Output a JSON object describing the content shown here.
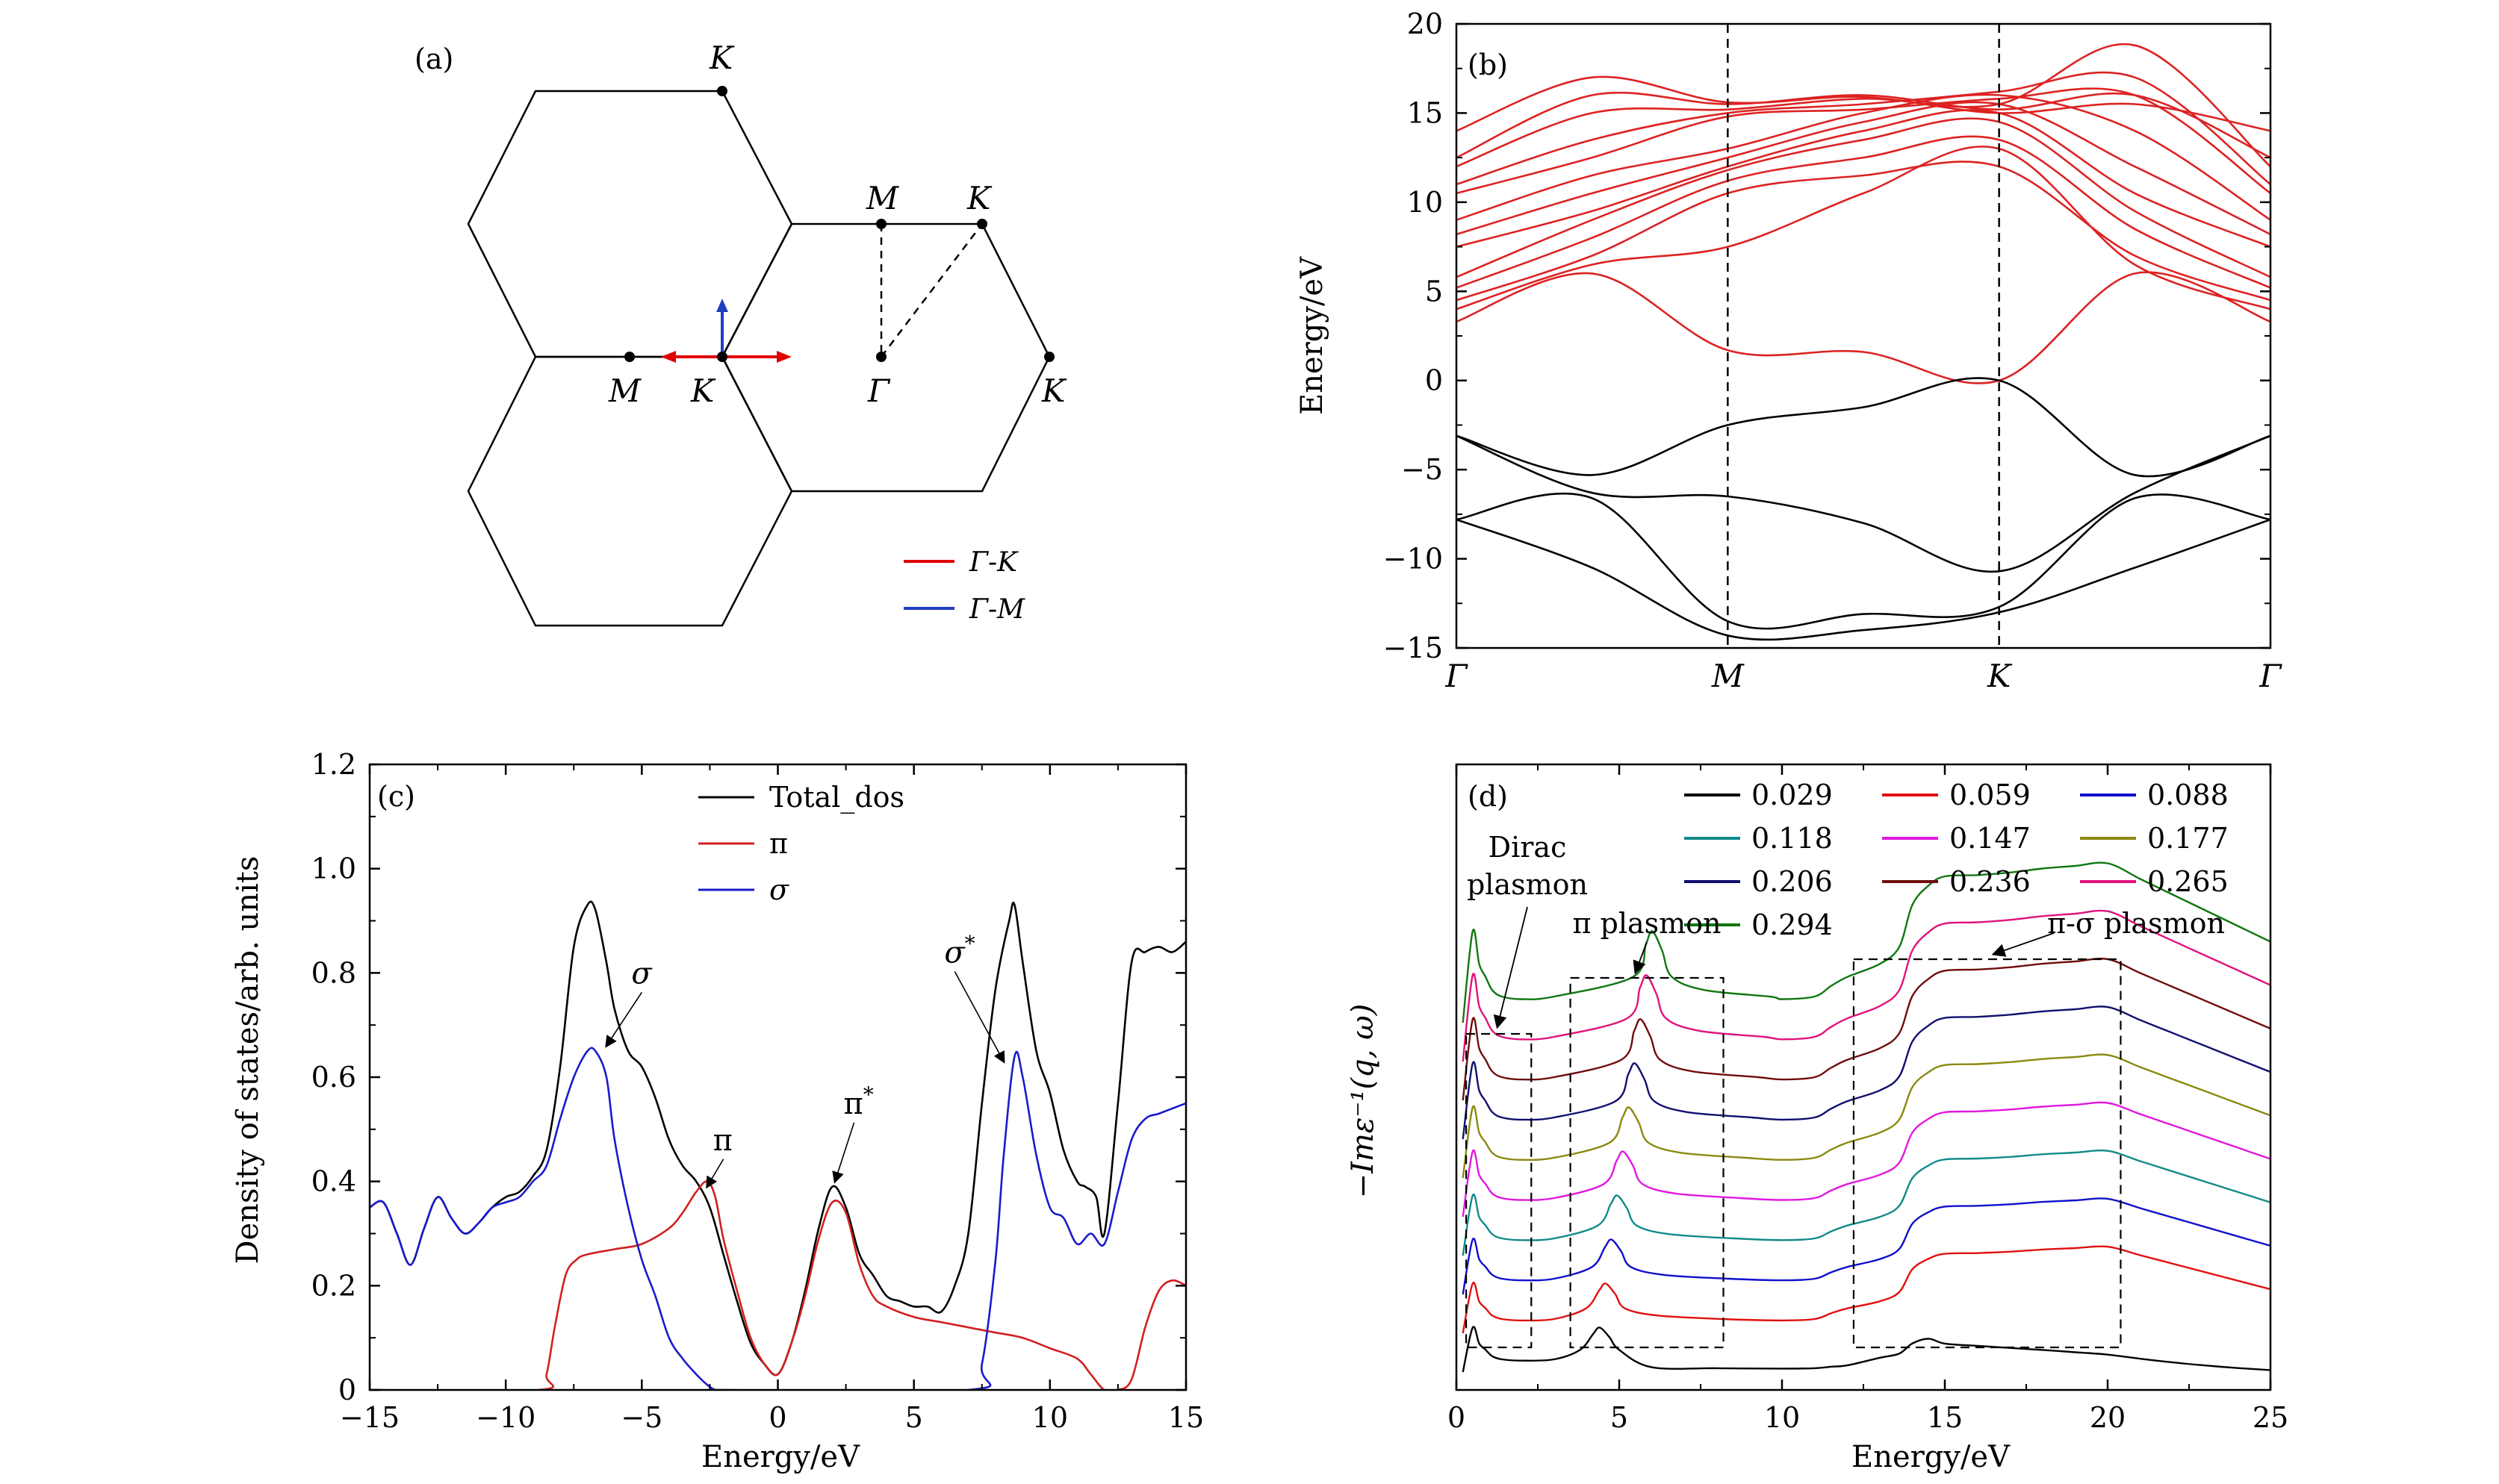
{
  "figure": {
    "title": ""
  },
  "panels": {
    "a": {
      "label": "(a)",
      "points": {
        "K": "K",
        "M": "M",
        "G": "Γ"
      },
      "legend": [
        {
          "label": "Γ-K",
          "color": "#e00000"
        },
        {
          "label": "Γ-M",
          "color": "#1f3fbf"
        }
      ]
    }
  },
  "chart_data": [
    {
      "id": "b",
      "type": "line",
      "label": "(b)",
      "title": "",
      "xlabel": "",
      "ylabel": "Energy/eV",
      "ylim": [
        -15,
        20
      ],
      "yticks": [
        -15,
        -10,
        -5,
        0,
        5,
        10,
        15,
        20
      ],
      "xticks": [
        "Γ",
        "M",
        "K",
        "Γ"
      ],
      "xtick_pos": [
        0,
        1,
        2,
        3
      ],
      "series": [
        {
          "group": "conduction",
          "color": "#dd2222",
          "x": [
            0,
            0.5,
            1,
            1.5,
            2,
            2.5,
            3
          ],
          "y": [
            3.3,
            6,
            1.7,
            1.6,
            0,
            6,
            3.3
          ]
        },
        {
          "group": "conduction",
          "color": "#dd2222",
          "x": [
            0,
            0.5,
            1,
            1.5,
            2,
            2.5,
            3
          ],
          "y": [
            4.0,
            6.5,
            7.5,
            10.5,
            13.0,
            6.5,
            4.0
          ]
        },
        {
          "group": "conduction",
          "color": "#dd2222",
          "x": [
            0,
            0.5,
            1,
            1.5,
            2,
            2.5,
            3
          ],
          "y": [
            4.5,
            7.0,
            10.5,
            11.5,
            12.0,
            7.0,
            4.5
          ]
        },
        {
          "group": "conduction",
          "color": "#dd2222",
          "x": [
            0,
            0.5,
            1,
            1.5,
            2,
            2.5,
            3
          ],
          "y": [
            5.2,
            8.0,
            11.2,
            12.5,
            13.5,
            8.5,
            5.2
          ]
        },
        {
          "group": "conduction",
          "color": "#dd2222",
          "x": [
            0,
            0.5,
            1,
            1.5,
            2,
            2.5,
            3
          ],
          "y": [
            5.8,
            9.0,
            11.8,
            13.5,
            14.5,
            9.5,
            5.8
          ]
        },
        {
          "group": "conduction",
          "color": "#dd2222",
          "x": [
            0,
            0.5,
            1,
            1.5,
            2,
            2.5,
            3
          ],
          "y": [
            7.5,
            9.5,
            12.0,
            14.0,
            15.0,
            10.5,
            7.5
          ]
        },
        {
          "group": "conduction",
          "color": "#dd2222",
          "x": [
            0,
            0.5,
            1,
            1.5,
            2,
            2.5,
            3
          ],
          "y": [
            8.2,
            10.5,
            12.5,
            14.5,
            15.5,
            12.0,
            8.2
          ]
        },
        {
          "group": "conduction",
          "color": "#dd2222",
          "x": [
            0,
            0.5,
            1,
            1.5,
            2,
            2.5,
            3
          ],
          "y": [
            9.0,
            11.5,
            13.0,
            15.0,
            16.0,
            14.0,
            9.0
          ]
        },
        {
          "group": "conduction",
          "color": "#dd2222",
          "x": [
            0,
            0.5,
            1,
            1.5,
            2,
            2.5,
            3
          ],
          "y": [
            10.5,
            12.5,
            14.8,
            15.2,
            15.8,
            16.0,
            10.5
          ]
        },
        {
          "group": "conduction",
          "color": "#dd2222",
          "x": [
            0,
            0.5,
            1,
            1.5,
            2,
            2.5,
            3
          ],
          "y": [
            11.0,
            13.5,
            15.0,
            15.5,
            16.2,
            17.0,
            11.0
          ]
        },
        {
          "group": "conduction",
          "color": "#dd2222",
          "x": [
            0,
            0.5,
            1,
            1.5,
            2,
            2.5,
            3
          ],
          "y": [
            12.0,
            15.0,
            15.2,
            15.8,
            15.5,
            18.8,
            12.0
          ]
        },
        {
          "group": "conduction",
          "color": "#dd2222",
          "x": [
            0,
            0.5,
            1,
            1.5,
            2,
            2.5,
            3
          ],
          "y": [
            12.5,
            16.0,
            15.5,
            16.0,
            15.2,
            16.0,
            12.5
          ]
        },
        {
          "group": "conduction",
          "color": "#dd2222",
          "x": [
            0,
            0.5,
            1,
            1.5,
            2,
            2.5,
            3
          ],
          "y": [
            14.0,
            17.0,
            15.6,
            15.9,
            15.0,
            15.5,
            14.0
          ]
        },
        {
          "group": "valence",
          "color": "#000000",
          "x": [
            0,
            0.5,
            1,
            1.5,
            2,
            2.5,
            3
          ],
          "y": [
            -3.1,
            -5.3,
            -2.5,
            -1.5,
            0,
            -5.3,
            -3.1
          ]
        },
        {
          "group": "valence",
          "color": "#000000",
          "x": [
            0,
            0.5,
            1,
            1.5,
            2,
            2.5,
            3
          ],
          "y": [
            -3.1,
            -6.3,
            -6.5,
            -8.0,
            -10.7,
            -6.3,
            -3.1
          ]
        },
        {
          "group": "valence",
          "color": "#000000",
          "x": [
            0,
            0.5,
            1,
            1.5,
            2,
            2.5,
            3
          ],
          "y": [
            -7.8,
            -6.6,
            -13.5,
            -13.1,
            -12.7,
            -6.6,
            -7.8
          ]
        },
        {
          "group": "valence",
          "color": "#000000",
          "x": [
            0,
            0.5,
            1,
            1.5,
            2,
            2.5,
            3
          ],
          "y": [
            -7.8,
            -10.5,
            -14.3,
            -14.0,
            -13.0,
            -10.5,
            -7.8
          ]
        }
      ],
      "vlines_at": [
        1,
        2
      ]
    },
    {
      "id": "c",
      "type": "line",
      "label": "(c)",
      "title": "",
      "xlabel": "Energy/eV",
      "ylabel": "Density of states/arb. units",
      "xlim": [
        -15,
        15
      ],
      "ylim": [
        0,
        1.2
      ],
      "xticks": [
        -15,
        -10,
        -5,
        0,
        5,
        10,
        15
      ],
      "xtick_labels": [
        "−15",
        "−10",
        "−5",
        "0",
        "5",
        "10",
        "15"
      ],
      "yticks": [
        0,
        0.2,
        0.4,
        0.6,
        0.8,
        1.0,
        1.2
      ],
      "ytick_labels": [
        "0",
        "0.2",
        "0.4",
        "0.6",
        "0.8",
        "1.0",
        "1.2"
      ],
      "legend": [
        {
          "label": "Total_dos",
          "color": "#000000"
        },
        {
          "label": "π",
          "color": "#d22020"
        },
        {
          "label": "σ",
          "color": "#1a1acc"
        }
      ],
      "annotations": [
        {
          "text": "σ",
          "x": -5.0,
          "y": 0.78,
          "tx": -6.3,
          "ty": 0.66
        },
        {
          "text": "π",
          "x": -2.0,
          "y": 0.46,
          "tx": -2.6,
          "ty": 0.39
        },
        {
          "text": "π*",
          "x": 2.8,
          "y": 0.53,
          "tx": 2.1,
          "ty": 0.4
        },
        {
          "text": "σ*",
          "x": 6.5,
          "y": 0.82,
          "tx": 8.3,
          "ty": 0.63
        }
      ],
      "series": [
        {
          "name": "Total_dos",
          "color": "#000000",
          "x": [
            -15,
            -14.5,
            -14,
            -13.5,
            -13,
            -12.5,
            -12,
            -11.5,
            -11,
            -10.5,
            -10,
            -9.5,
            -9,
            -8.5,
            -8,
            -7.5,
            -7,
            -6.7,
            -6.3,
            -6,
            -5.5,
            -5,
            -4.5,
            -4,
            -3.5,
            -3,
            -2.5,
            -2,
            -1.5,
            -1,
            -0.5,
            0,
            0.5,
            1,
            1.5,
            2,
            2.5,
            3,
            3.5,
            4,
            4.5,
            5,
            5.5,
            6,
            6.5,
            7,
            7.5,
            8,
            8.5,
            8.7,
            9,
            9.5,
            10,
            10.5,
            11,
            11.3,
            11.7,
            12,
            12.5,
            13,
            13.5,
            14,
            14.5,
            15
          ],
          "y": [
            0.35,
            0.36,
            0.3,
            0.24,
            0.31,
            0.37,
            0.33,
            0.3,
            0.32,
            0.35,
            0.37,
            0.38,
            0.41,
            0.46,
            0.62,
            0.85,
            0.93,
            0.92,
            0.82,
            0.73,
            0.65,
            0.62,
            0.56,
            0.48,
            0.43,
            0.4,
            0.35,
            0.26,
            0.17,
            0.09,
            0.05,
            0.03,
            0.09,
            0.19,
            0.31,
            0.39,
            0.35,
            0.26,
            0.22,
            0.18,
            0.17,
            0.16,
            0.16,
            0.15,
            0.2,
            0.3,
            0.55,
            0.77,
            0.9,
            0.93,
            0.82,
            0.65,
            0.57,
            0.46,
            0.4,
            0.39,
            0.37,
            0.3,
            0.55,
            0.82,
            0.84,
            0.85,
            0.84,
            0.86
          ]
        },
        {
          "name": "π",
          "color": "#d22020",
          "x": [
            -15,
            -8.8,
            -8.5,
            -8.2,
            -7.8,
            -7.4,
            -7,
            -6,
            -5,
            -4,
            -3.5,
            -3,
            -2.6,
            -2.3,
            -2,
            -1.5,
            -1,
            -0.5,
            0,
            0.5,
            1,
            1.5,
            2,
            2.5,
            3,
            3.5,
            4,
            5,
            6,
            7,
            8,
            9,
            10,
            11,
            11.5,
            12,
            12.5,
            13,
            13.5,
            14,
            14.5,
            15
          ],
          "y": [
            0,
            0,
            0.03,
            0.12,
            0.22,
            0.25,
            0.26,
            0.27,
            0.28,
            0.31,
            0.34,
            0.38,
            0.4,
            0.37,
            0.29,
            0.19,
            0.1,
            0.05,
            0.03,
            0.09,
            0.18,
            0.29,
            0.36,
            0.34,
            0.24,
            0.18,
            0.16,
            0.14,
            0.13,
            0.12,
            0.11,
            0.1,
            0.08,
            0.06,
            0.03,
            0.0,
            0.0,
            0.02,
            0.12,
            0.19,
            0.21,
            0.2
          ]
        },
        {
          "name": "σ",
          "color": "#1a1acc",
          "x": [
            -15,
            -14.5,
            -14,
            -13.5,
            -13,
            -12.5,
            -12,
            -11.5,
            -11,
            -10.5,
            -10,
            -9.5,
            -9,
            -8.5,
            -8,
            -7.5,
            -7,
            -6.7,
            -6.3,
            -6,
            -5.5,
            -5,
            -4.5,
            -4,
            -3.5,
            -3,
            -2.6,
            -2.3,
            -2,
            7,
            7.5,
            8,
            8.3,
            8.7,
            9,
            9.5,
            10,
            10.5,
            11,
            11.5,
            12,
            12.5,
            13,
            13.5,
            14,
            14.5,
            15
          ],
          "y": [
            0.35,
            0.36,
            0.3,
            0.24,
            0.31,
            0.37,
            0.33,
            0.3,
            0.32,
            0.35,
            0.36,
            0.37,
            0.4,
            0.43,
            0.52,
            0.6,
            0.65,
            0.65,
            0.6,
            0.48,
            0.35,
            0.25,
            0.18,
            0.1,
            0.06,
            0.03,
            0.01,
            0.0,
            0.0,
            0.0,
            0.05,
            0.25,
            0.45,
            0.64,
            0.6,
            0.45,
            0.35,
            0.33,
            0.28,
            0.3,
            0.28,
            0.38,
            0.48,
            0.52,
            0.53,
            0.54,
            0.55
          ]
        }
      ]
    },
    {
      "id": "d",
      "type": "line",
      "label": "(d)",
      "title": "",
      "xlabel": "Energy/eV",
      "ylabel": "−Imε⁻¹(q, ω)",
      "xlim": [
        0,
        25
      ],
      "xticks": [
        0,
        5,
        10,
        15,
        20,
        25
      ],
      "legend_columns": 3,
      "annotations": [
        "Dirac",
        "plasmon",
        "π plasmon",
        "π-σ plasmon"
      ],
      "base_shape": {
        "x": [
          0.2,
          0.5,
          0.7,
          0.9,
          1.1,
          1.4,
          2,
          3,
          3.8,
          4.2,
          4.4,
          4.7,
          5,
          6,
          8,
          10,
          11,
          11.5,
          12,
          13,
          13.6,
          14,
          14.5,
          15,
          16,
          17,
          18,
          19,
          20,
          21,
          22,
          23,
          24,
          25
        ],
        "y": [
          0.0,
          0.7,
          0.45,
          0.35,
          0.25,
          0.2,
          0.18,
          0.2,
          0.35,
          0.6,
          0.7,
          0.55,
          0.35,
          0.25,
          0.2,
          0.18,
          0.2,
          0.28,
          0.35,
          0.45,
          0.58,
          0.9,
          1.05,
          1.12,
          1.13,
          1.15,
          1.18,
          1.2,
          1.22,
          1.1,
          0.98,
          0.86,
          0.74,
          0.62
        ]
      },
      "series": [
        {
          "name": "0.029",
          "color": "#000000"
        },
        {
          "name": "0.059",
          "color": "#e01010"
        },
        {
          "name": "0.088",
          "color": "#1010cc"
        },
        {
          "name": "0.118",
          "color": "#138a8a"
        },
        {
          "name": "0.147",
          "color": "#e018e0"
        },
        {
          "name": "0.177",
          "color": "#8a8a10"
        },
        {
          "name": "0.206",
          "color": "#101070"
        },
        {
          "name": "0.236",
          "color": "#700d0d"
        },
        {
          "name": "0.265",
          "color": "#e0137a"
        },
        {
          "name": "0.294",
          "color": "#117711"
        }
      ]
    }
  ]
}
